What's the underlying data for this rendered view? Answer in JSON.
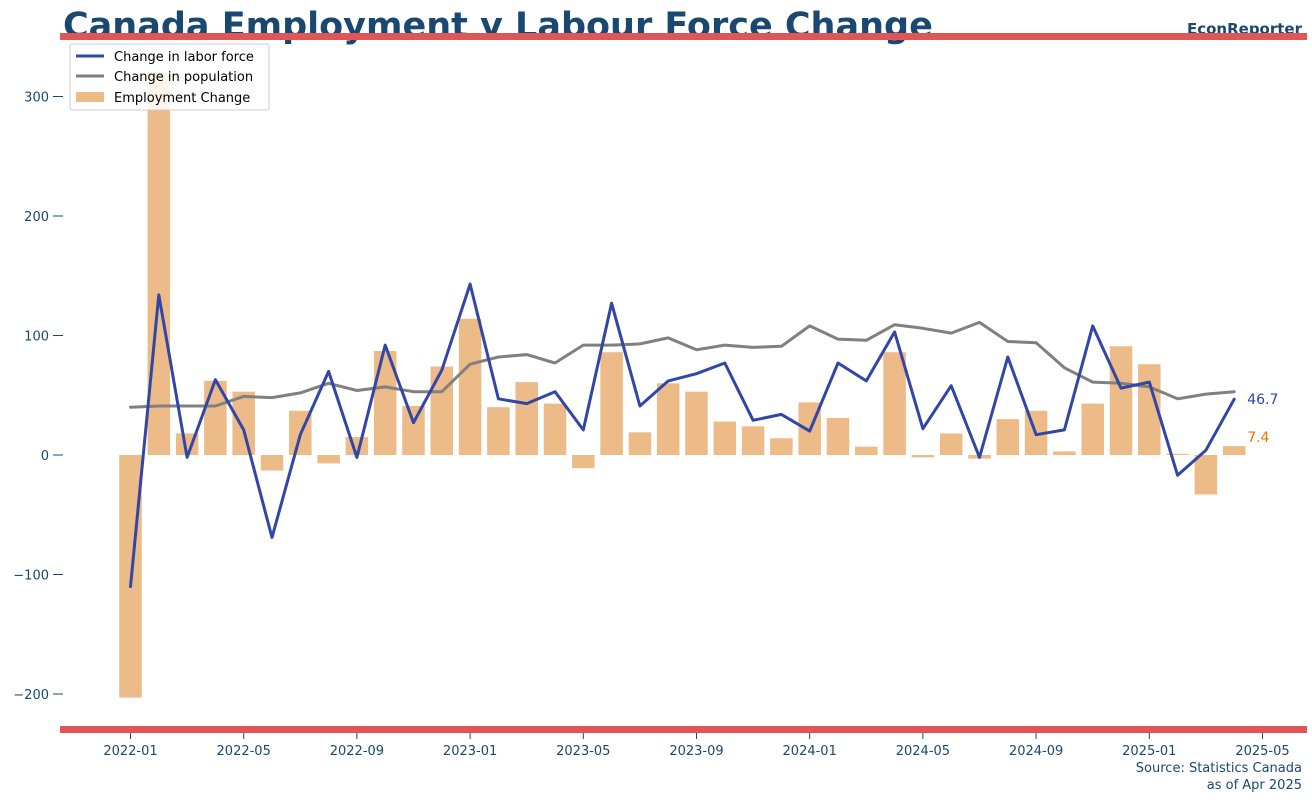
{
  "header": {
    "title": "Canada Employment v Labour Force Change",
    "brand": "EconReporter"
  },
  "footer": {
    "source": "Source: Statistics Canada",
    "as_of": "as of Apr 2025"
  },
  "colors": {
    "title": "#1a4870",
    "rule": "#e05555",
    "labor_force": "#3246a8",
    "population": "#808080",
    "employment": "#ecbb87",
    "employment_label": "#e07b00"
  },
  "chart_data": {
    "type": "bar",
    "title": "Canada Employment v Labour Force Change",
    "xlabel": "",
    "ylabel": "",
    "ylim": [
      -230,
      350
    ],
    "grid": false,
    "legend_position": "top-left",
    "x_tick_labels": [
      "2022-01",
      "2022-05",
      "2022-09",
      "2023-01",
      "2023-05",
      "2023-09",
      "2024-01",
      "2024-05",
      "2024-09",
      "2025-01",
      "2025-05"
    ],
    "y_tick_labels": [
      "300",
      "200",
      "100",
      "0",
      "−100",
      "−200"
    ],
    "y_ticks": [
      300,
      200,
      100,
      0,
      -100,
      -200
    ],
    "categories": [
      "2022-01",
      "2022-02",
      "2022-03",
      "2022-04",
      "2022-05",
      "2022-06",
      "2022-07",
      "2022-08",
      "2022-09",
      "2022-10",
      "2022-11",
      "2022-12",
      "2023-01",
      "2023-02",
      "2023-03",
      "2023-04",
      "2023-05",
      "2023-06",
      "2023-07",
      "2023-08",
      "2023-09",
      "2023-10",
      "2023-11",
      "2023-12",
      "2024-01",
      "2024-02",
      "2024-03",
      "2024-04",
      "2024-05",
      "2024-06",
      "2024-07",
      "2024-08",
      "2024-09",
      "2024-10",
      "2024-11",
      "2024-12",
      "2025-01",
      "2025-02",
      "2025-03",
      "2025-04"
    ],
    "series": [
      {
        "name": "Employment Change",
        "type": "bar",
        "values": [
          -203,
          320,
          18,
          62,
          53,
          -13,
          37,
          -7,
          15,
          87,
          41,
          74,
          114,
          40,
          61,
          43,
          -11,
          86,
          19,
          60,
          53,
          28,
          24,
          14,
          44,
          31,
          7,
          86,
          -2,
          18,
          -3,
          30,
          37,
          3,
          43,
          91,
          76,
          1,
          -33,
          7.4
        ]
      },
      {
        "name": "Change in labor force",
        "type": "line",
        "values": [
          -110,
          134,
          -2,
          63,
          21,
          -69,
          17,
          70,
          -2,
          92,
          27,
          71,
          143,
          47,
          43,
          53,
          21,
          127,
          41,
          62,
          68,
          77,
          29,
          34,
          20,
          77,
          62,
          103,
          22,
          58,
          -2,
          82,
          17,
          21,
          108,
          56,
          61,
          -17,
          4,
          46.7
        ]
      },
      {
        "name": "Change in population",
        "type": "line",
        "values": [
          40,
          41,
          41,
          41,
          49,
          48,
          52,
          60,
          54,
          57,
          53,
          53,
          76,
          82,
          84,
          77,
          92,
          92,
          93,
          98,
          88,
          92,
          90,
          91,
          108,
          97,
          96,
          109,
          106,
          102,
          111,
          95,
          94,
          73,
          61,
          60,
          57,
          47,
          51,
          53
        ]
      }
    ],
    "legend": [
      "Change in labor force",
      "Change in population",
      "Employment Change"
    ],
    "end_labels": {
      "labor_force": "46.7",
      "employment": "7.4"
    }
  }
}
